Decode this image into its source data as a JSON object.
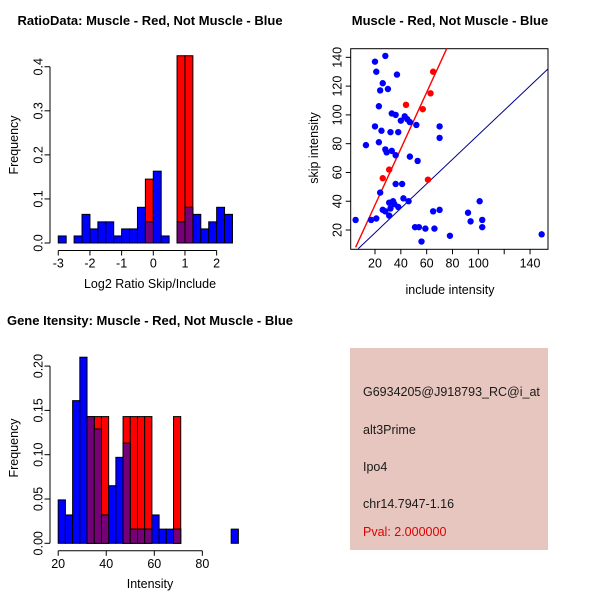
{
  "colors": {
    "blue": "#0000FF",
    "red": "#FF0000",
    "overlap_purple": "#760076",
    "line_blue": "#00008B",
    "line_red": "#FF0000",
    "axis_black": "#000000",
    "info_bg": "#E6C6BE",
    "pval_red": "#E00000",
    "background": "#FFFFFF"
  },
  "chart_data": [
    {
      "type": "bar",
      "id": "ratio-histogram",
      "title": "RatioData: Muscle - Red, Not Muscle - Blue",
      "xlabel": "Log2 Ratio Skip/Include",
      "ylabel": "Frequency",
      "xlim": [
        -3.04,
        2.99
      ],
      "ylim": [
        0,
        0.438
      ],
      "grid": false,
      "xticks": [
        -3,
        -2,
        -1,
        0,
        1,
        2
      ],
      "xtick_labels": [
        "-3",
        "-2",
        "-1",
        "0",
        "1",
        "2"
      ],
      "yticks": [
        0,
        0.1,
        0.2,
        0.3,
        0.4
      ],
      "ytick_labels": [
        "0.0",
        "0.1",
        "0.2",
        "0.3",
        "0.4"
      ],
      "blue_bins": {
        "start": -3,
        "width": 0.25,
        "freq": [
          0.016,
          0,
          0.016,
          0.065,
          0.032,
          0.048,
          0.048,
          0.016,
          0.032,
          0.032,
          0.081,
          0.048,
          0.163,
          0.016,
          0,
          0.048,
          0.081,
          0.065,
          0.032,
          0.048,
          0.081,
          0.065
        ]
      },
      "red_bars": [
        [
          -0.25,
          0,
          0.145
        ],
        [
          0.75,
          1,
          0.425
        ],
        [
          1,
          1.25,
          0.425
        ]
      ]
    },
    {
      "type": "scatter",
      "id": "intensity-scatter",
      "title": "Muscle - Red, Not Muscle - Blue",
      "xlabel": "include intensity",
      "ylabel": "skip intensity",
      "xlim": [
        1.2,
        153.9
      ],
      "ylim": [
        6.6,
        146
      ],
      "grid": false,
      "xticks": [
        20,
        40,
        60,
        80,
        100,
        120,
        140
      ],
      "xtick_labels": [
        "20",
        "40",
        "60",
        "80",
        "100",
        "",
        "140"
      ],
      "yticks": [
        20,
        40,
        60,
        80,
        100,
        120,
        140
      ],
      "ytick_labels": [
        "20",
        "40",
        "60",
        "80",
        "100",
        "120",
        "140"
      ],
      "blue_points": [
        [
          20,
          137
        ],
        [
          28,
          141
        ],
        [
          21,
          130
        ],
        [
          37,
          128
        ],
        [
          26,
          122
        ],
        [
          30,
          118
        ],
        [
          24,
          117
        ],
        [
          23,
          106
        ],
        [
          33,
          101
        ],
        [
          36,
          100
        ],
        [
          43,
          99
        ],
        [
          45,
          97
        ],
        [
          40,
          96
        ],
        [
          47,
          95
        ],
        [
          52,
          93
        ],
        [
          70,
          92
        ],
        [
          20,
          92
        ],
        [
          25,
          89
        ],
        [
          32,
          88
        ],
        [
          38,
          88
        ],
        [
          70,
          84
        ],
        [
          23,
          81
        ],
        [
          13,
          79
        ],
        [
          28,
          76
        ],
        [
          33,
          75
        ],
        [
          36,
          72
        ],
        [
          47,
          71
        ],
        [
          53,
          68
        ],
        [
          29,
          74
        ],
        [
          36,
          52
        ],
        [
          41,
          52
        ],
        [
          42,
          42
        ],
        [
          46,
          40
        ],
        [
          24,
          46
        ],
        [
          34,
          40
        ],
        [
          31,
          39
        ],
        [
          35,
          38
        ],
        [
          38,
          36
        ],
        [
          32,
          35
        ],
        [
          26,
          34
        ],
        [
          28,
          33
        ],
        [
          31,
          30
        ],
        [
          21,
          28
        ],
        [
          5,
          27
        ],
        [
          17,
          27
        ],
        [
          65,
          33
        ],
        [
          70,
          34
        ],
        [
          92,
          32
        ],
        [
          101,
          40
        ],
        [
          94,
          26
        ],
        [
          103,
          27
        ],
        [
          103,
          22
        ],
        [
          54,
          22
        ],
        [
          59,
          21
        ],
        [
          66,
          21
        ],
        [
          78,
          16
        ],
        [
          56,
          12
        ],
        [
          51,
          22
        ],
        [
          149,
          17
        ]
      ],
      "red_points": [
        [
          65,
          130
        ],
        [
          63,
          115
        ],
        [
          44,
          107
        ],
        [
          57,
          104
        ],
        [
          31,
          62
        ],
        [
          26,
          56
        ],
        [
          61,
          55
        ]
      ],
      "red_line": [
        [
          5,
          8
        ],
        [
          75.5,
          146
        ]
      ],
      "blue_line": [
        [
          7,
          7
        ],
        [
          153.9,
          132
        ]
      ]
    },
    {
      "type": "bar",
      "id": "gene-intensity-histogram",
      "title": "Gene Itensity: Muscle - Red, Not Muscle - Blue",
      "xlabel": "Intensity",
      "ylabel": "Frequency",
      "xlim": [
        19.5,
        99
      ],
      "ylim": [
        0,
        0.2125
      ],
      "grid": false,
      "xticks": [
        20,
        40,
        60,
        80
      ],
      "xtick_labels": [
        "20",
        "40",
        "60",
        "80"
      ],
      "yticks": [
        0,
        0.05,
        0.1,
        0.15,
        0.2
      ],
      "ytick_labels": [
        "0.00",
        "0.05",
        "0.10",
        "0.15",
        "0.20"
      ],
      "blue_bins": {
        "start": 20,
        "width": 3,
        "freq": [
          0.049,
          0.032,
          0.161,
          0.21,
          0.143,
          0.129,
          0.032,
          0.065,
          0.097,
          0.113,
          0.016,
          0.016,
          0.016,
          0.032,
          0.016,
          0.016,
          0.016,
          0,
          0,
          0,
          0,
          0,
          0,
          0,
          0.016
        ]
      },
      "red_bars": [
        [
          32,
          35,
          0.143
        ],
        [
          35,
          38,
          0.143
        ],
        [
          38,
          41,
          0.143
        ],
        [
          47,
          50,
          0.143
        ],
        [
          50,
          53,
          0.143
        ],
        [
          53,
          56,
          0.143
        ],
        [
          56,
          59,
          0.143
        ],
        [
          68,
          71,
          0.143
        ]
      ]
    }
  ],
  "info_panel": {
    "probe_id": "G6934205@J918793_RC@i_at",
    "splice_type": "alt3Prime",
    "gene": "Ipo4",
    "location": "chr14.7947-1.16",
    "pval": "Pval: 2.000000"
  }
}
